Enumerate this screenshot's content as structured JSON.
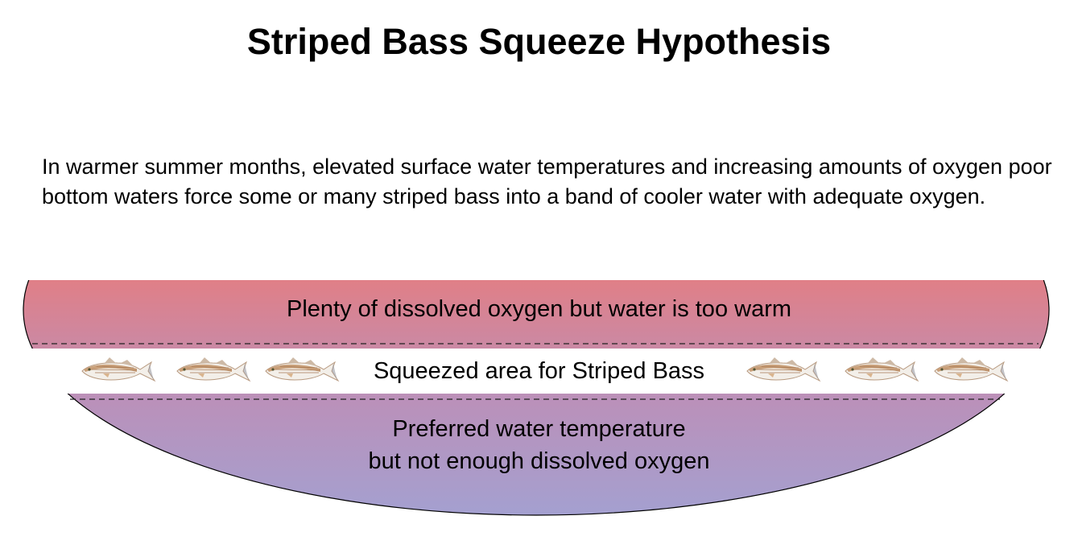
{
  "title": "Striped Bass Squeeze Hypothesis",
  "intro": "In warmer summer months, elevated surface water temperatures and increasing amounts of oxygen poor bottom waters force some or many striped bass into a band of cooler water with adequate oxygen.",
  "zones": {
    "top": "Plenty of dissolved oxygen but water is too warm",
    "middle": "Squeezed area for Striped Bass",
    "bottom_line1": "Preferred water temperature",
    "bottom_line2": "but not enough dissolved oxygen"
  },
  "colors": {
    "warm": "#e07f87",
    "mid": "#bb90b9",
    "cold": "#a4a0d0"
  },
  "fish_icons": [
    "striped-bass",
    "striped-bass",
    "striped-bass",
    "striped-bass",
    "striped-bass",
    "striped-bass"
  ]
}
